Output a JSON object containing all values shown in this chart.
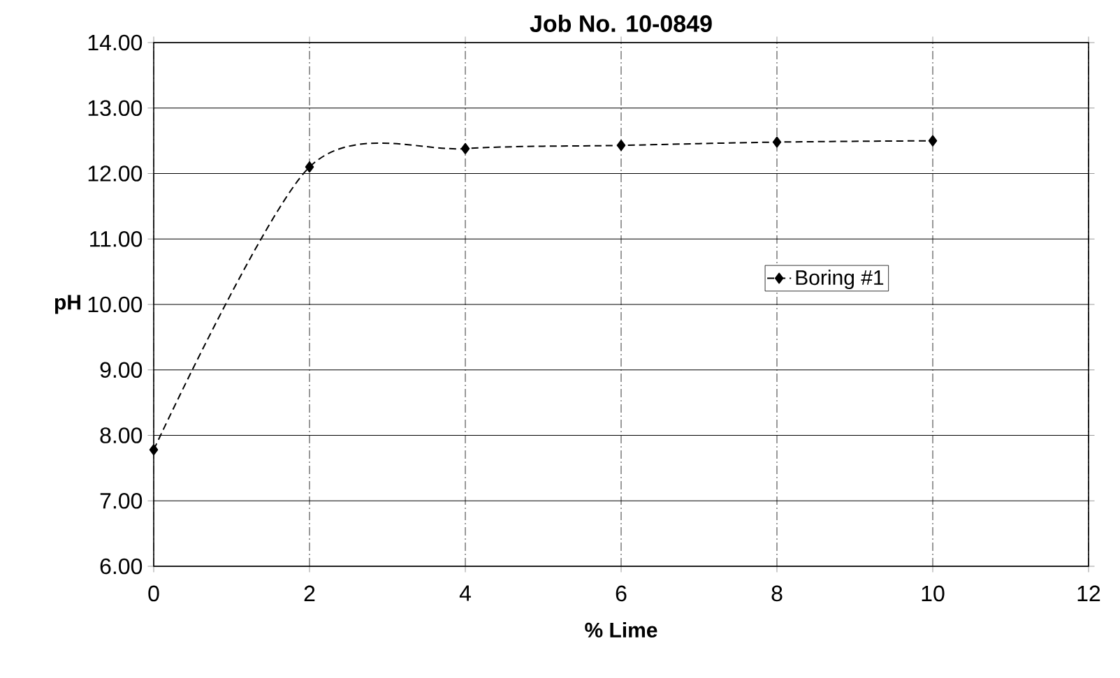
{
  "chart_data": {
    "type": "line",
    "title": "Job No. 10-0849",
    "xlabel": "% Lime",
    "ylabel": "pH",
    "x": [
      0,
      2,
      4,
      6,
      8,
      10
    ],
    "series": [
      {
        "name": "Boring #1",
        "color": "#000000",
        "values": [
          7.78,
          12.1,
          12.38,
          12.43,
          12.48,
          12.5
        ]
      }
    ],
    "xlim": [
      0,
      12
    ],
    "xticks": [
      0,
      2,
      4,
      6,
      8,
      10,
      12
    ],
    "ylim": [
      6,
      14
    ],
    "yticks": [
      {
        "value": 6,
        "label": "6.00"
      },
      {
        "value": 7,
        "label": "7.00"
      },
      {
        "value": 8,
        "label": "8.00"
      },
      {
        "value": 9,
        "label": "9.00"
      },
      {
        "value": 10,
        "label": "10.00"
      },
      {
        "value": 11,
        "label": "11.00"
      },
      {
        "value": 12,
        "label": "12.00"
      },
      {
        "value": 13,
        "label": "13.00"
      },
      {
        "value": 14,
        "label": "14.00"
      }
    ],
    "grid": true,
    "legend": "right",
    "marker": "diamond",
    "line_style": "dashed"
  }
}
